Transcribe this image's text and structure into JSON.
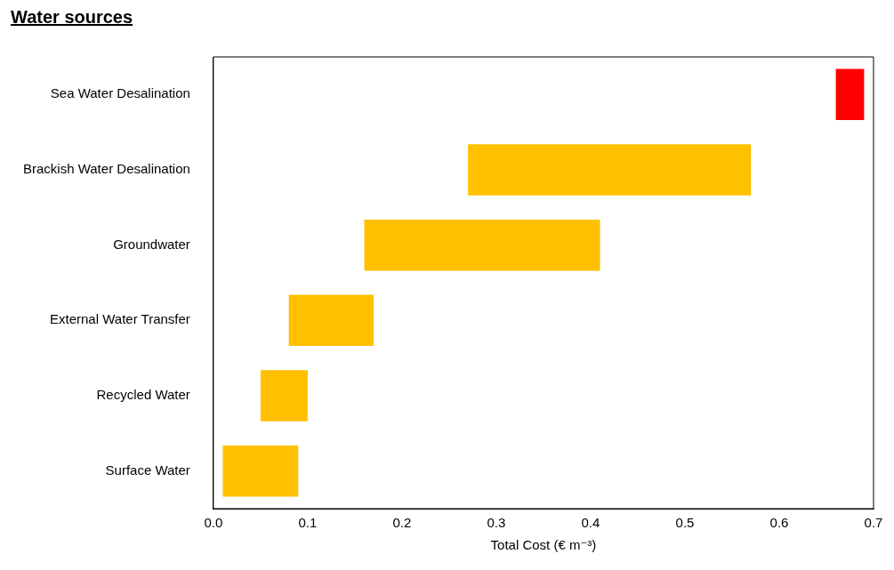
{
  "chart_data": {
    "type": "bar",
    "title": "Water sources",
    "orientation": "horizontal",
    "categories": [
      "Sea Water Desalination",
      "Brackish Water Desalination",
      "Groundwater",
      "External Water Transfer",
      "Recycled Water",
      "Surface Water"
    ],
    "base": [
      0.66,
      0.27,
      0.16,
      0.08,
      0.05,
      0.01
    ],
    "values": [
      0.03,
      0.3,
      0.25,
      0.09,
      0.05,
      0.08
    ],
    "colors": [
      "#ff0000",
      "#ffc000",
      "#ffc000",
      "#ffc000",
      "#ffc000",
      "#ffc000"
    ],
    "xlabel": "Total Cost (€ m⁻³)",
    "xlim": [
      0,
      0.7
    ],
    "xticks": [
      {
        "value": 0,
        "label": "0.0"
      },
      {
        "value": 0.1,
        "label": "0.1"
      },
      {
        "value": 0.2,
        "label": "0.2"
      },
      {
        "value": 0.3,
        "label": "0.3"
      },
      {
        "value": 0.4,
        "label": "0.4"
      },
      {
        "value": 0.5,
        "label": "0.5"
      },
      {
        "value": 0.6,
        "label": "0.6"
      },
      {
        "value": 0.7,
        "label": "0.7"
      }
    ],
    "grid": false,
    "legend": false
  }
}
